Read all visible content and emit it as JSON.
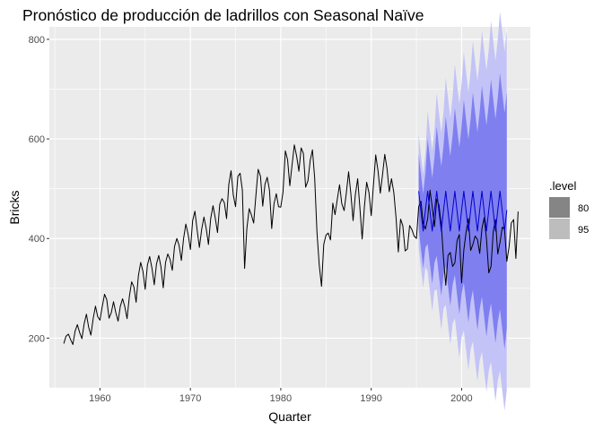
{
  "chart_data": {
    "type": "line",
    "title": "Pronóstico de producción de ladrillos con Seasonal Naïve",
    "xlabel": "Quarter",
    "ylabel": "Bricks",
    "xlim": [
      1954.4,
      2007.6
    ],
    "ylim": [
      100,
      825
    ],
    "x_ticks": [
      1960,
      1970,
      1980,
      1990,
      2000
    ],
    "y_ticks": [
      200,
      400,
      600,
      800
    ],
    "grid": true,
    "background": "#ebebeb",
    "grid_color": "#ffffff",
    "legend": {
      "title": ".level",
      "position": "right",
      "entries": [
        {
          "label": "80",
          "color": "#858585"
        },
        {
          "label": "95",
          "color": "#bdbdbd"
        }
      ]
    },
    "series": [
      {
        "role": "actual",
        "color": "#000000",
        "start": 1956.0,
        "step": 0.25,
        "values": [
          189,
          204,
          208,
          197,
          187,
          214,
          227,
          211,
          199,
          229,
          248,
          222,
          206,
          240,
          264,
          243,
          236,
          263,
          288,
          277,
          240,
          251,
          273,
          251,
          234,
          264,
          279,
          263,
          239,
          284,
          313,
          303,
          272,
          325,
          352,
          334,
          298,
          347,
          364,
          340,
          307,
          349,
          366,
          343,
          301,
          352,
          369,
          358,
          336,
          384,
          400,
          386,
          356,
          400,
          429,
          408,
          378,
          436,
          455,
          417,
          382,
          419,
          443,
          420,
          388,
          440,
          466,
          441,
          412,
          469,
          480,
          472,
          440,
          509,
          536,
          487,
          464,
          525,
          531,
          497,
          340,
          420,
          460,
          447,
          431,
          487,
          539,
          525,
          465,
          509,
          523,
          497,
          420,
          470,
          490,
          464,
          463,
          493,
          576,
          558,
          506,
          548,
          588,
          565,
          535,
          582,
          571,
          503,
          516,
          557,
          578,
          521,
          414,
          348,
          304,
          388,
          407,
          411,
          397,
          471,
          448,
          479,
          508,
          470,
          456,
          492,
          534,
          490,
          436,
          488,
          520,
          461,
          399,
          464,
          513,
          492,
          446,
          508,
          568,
          537,
          491,
          528,
          569,
          541,
          494,
          520,
          492,
          441,
          373,
          439,
          426,
          375,
          379,
          426,
          418,
          405,
          400,
          464,
          475,
          431,
          419,
          440,
          497,
          463,
          424,
          479,
          467,
          427,
          359,
          306,
          366,
          372,
          344,
          351,
          396,
          408,
          311,
          377,
          414,
          440,
          376,
          388,
          405,
          398,
          370,
          420,
          442,
          400,
          331,
          344,
          414,
          438,
          369,
          392,
          423,
          418,
          354,
          383,
          431,
          438,
          360,
          454
        ]
      },
      {
        "role": "forecast",
        "color": "#0000cc",
        "start": 1995.25,
        "step": 0.25,
        "pattern": [
          495,
          454,
          415,
          457
        ],
        "count": 40
      }
    ],
    "intervals": [
      {
        "level": "80",
        "color": "#7f7ff0",
        "half_width_base": 75,
        "growth": "sqrt"
      },
      {
        "level": "95",
        "color": "#c3c3f7",
        "half_width_base": 114,
        "growth": "sqrt"
      }
    ]
  }
}
